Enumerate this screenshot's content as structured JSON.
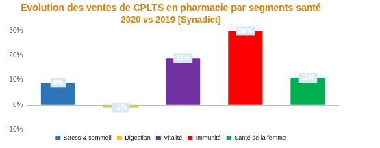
{
  "chart_data": {
    "type": "bar",
    "title": "Evolution des ventes de CPLTS en pharmacie par segments santé",
    "subtitle": "2020 vs 2019 [Synadiet]",
    "categories": [
      "Stress & sommeil",
      "Digestion",
      "Vitalité",
      "Immunité",
      "Santé de la femme"
    ],
    "values": [
      9,
      -1,
      19,
      30,
      11
    ],
    "value_labels": [
      "9%",
      "-1%",
      "19%",
      "30%",
      "11%"
    ],
    "colors": [
      "#2e75b6",
      "#ffc000",
      "#7030a0",
      "#ff0000",
      "#00b050"
    ],
    "ylim": [
      -10,
      30
    ],
    "yticks": [
      {
        "value": -10,
        "label": "-10%"
      },
      {
        "value": 0,
        "label": "0%"
      },
      {
        "value": 10,
        "label": "10%"
      },
      {
        "value": 20,
        "label": "20%"
      },
      {
        "value": 30,
        "label": "30%"
      }
    ],
    "grid": false,
    "legend": "bottom",
    "data_labels": true,
    "tick_labels": "y"
  }
}
